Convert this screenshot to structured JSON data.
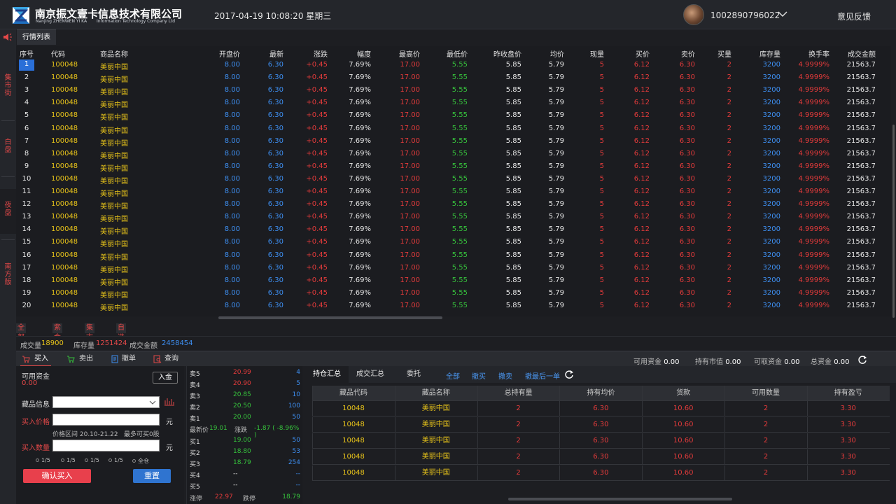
{
  "header": {
    "company_cn": "南京振文壹卡信息技术有限公司",
    "company_en_left": "Nanjing ZHENWEN YI KA",
    "company_en_right": "Information Technology Company Ltd",
    "datetime": "2017-04-19 10:08:20 星期三",
    "account": "1002890796022",
    "feedback": "意见反馈"
  },
  "sidebar": {
    "tabs": [
      "集市街",
      "白盘",
      "夜盘",
      "南方版"
    ],
    "active_index": 2
  },
  "market": {
    "tab_label": "行情列表",
    "columns": [
      "序号",
      "代码",
      "商品名称",
      "开盘价",
      "最新",
      "涨跌",
      "幅度",
      "最高价",
      "最低价",
      "昨收盘价",
      "均价",
      "现量",
      "买价",
      "卖价",
      "买量",
      "库存量",
      "换手率",
      "成交金额"
    ],
    "selected_row": 1,
    "rows": [
      [
        "1",
        "100048",
        "美丽中国",
        "8.00",
        "6.30",
        "+0.45",
        "7.69%",
        "17.00",
        "5.55",
        "5.85",
        "5.79",
        "5",
        "6.12",
        "6.30",
        "2",
        "3200",
        "4.9999%",
        "21563.7"
      ],
      [
        "2",
        "100048",
        "美丽中国",
        "8.00",
        "6.30",
        "+0.45",
        "7.69%",
        "17.00",
        "5.55",
        "5.85",
        "5.79",
        "5",
        "6.12",
        "6.30",
        "2",
        "3200",
        "4.9999%",
        "21563.7"
      ],
      [
        "3",
        "100048",
        "美丽中国",
        "8.00",
        "6.30",
        "+0.45",
        "7.69%",
        "17.00",
        "5.55",
        "5.85",
        "5.79",
        "5",
        "6.12",
        "6.30",
        "2",
        "3200",
        "4.9999%",
        "21563.7"
      ],
      [
        "4",
        "100048",
        "美丽中国",
        "8.00",
        "6.30",
        "+0.45",
        "7.69%",
        "17.00",
        "5.55",
        "5.85",
        "5.79",
        "5",
        "6.12",
        "6.30",
        "2",
        "3200",
        "4.9999%",
        "21563.7"
      ],
      [
        "5",
        "100048",
        "美丽中国",
        "8.00",
        "6.30",
        "+0.45",
        "7.69%",
        "17.00",
        "5.55",
        "5.85",
        "5.79",
        "5",
        "6.12",
        "6.30",
        "2",
        "3200",
        "4.9999%",
        "21563.7"
      ],
      [
        "6",
        "100048",
        "美丽中国",
        "8.00",
        "6.30",
        "+0.45",
        "7.69%",
        "17.00",
        "5.55",
        "5.85",
        "5.79",
        "5",
        "6.12",
        "6.30",
        "2",
        "3200",
        "4.9999%",
        "21563.7"
      ],
      [
        "7",
        "100048",
        "美丽中国",
        "8.00",
        "6.30",
        "+0.45",
        "7.69%",
        "17.00",
        "5.55",
        "5.85",
        "5.79",
        "5",
        "6.12",
        "6.30",
        "2",
        "3200",
        "4.9999%",
        "21563.7"
      ],
      [
        "8",
        "100048",
        "美丽中国",
        "8.00",
        "6.30",
        "+0.45",
        "7.69%",
        "17.00",
        "5.55",
        "5.85",
        "5.79",
        "5",
        "6.12",
        "6.30",
        "2",
        "3200",
        "4.9999%",
        "21563.7"
      ],
      [
        "9",
        "100048",
        "美丽中国",
        "8.00",
        "6.30",
        "+0.45",
        "7.69%",
        "17.00",
        "5.55",
        "5.85",
        "5.79",
        "5",
        "6.12",
        "6.30",
        "2",
        "3200",
        "4.9999%",
        "21563.7"
      ],
      [
        "10",
        "100048",
        "美丽中国",
        "8.00",
        "6.30",
        "+0.45",
        "7.69%",
        "17.00",
        "5.55",
        "5.85",
        "5.79",
        "5",
        "6.12",
        "6.30",
        "2",
        "3200",
        "4.9999%",
        "21563.7"
      ],
      [
        "11",
        "100048",
        "美丽中国",
        "8.00",
        "6.30",
        "+0.45",
        "7.69%",
        "17.00",
        "5.55",
        "5.85",
        "5.79",
        "5",
        "6.12",
        "6.30",
        "2",
        "3200",
        "4.9999%",
        "21563.7"
      ],
      [
        "12",
        "100048",
        "美丽中国",
        "8.00",
        "6.30",
        "+0.45",
        "7.69%",
        "17.00",
        "5.55",
        "5.85",
        "5.79",
        "5",
        "6.12",
        "6.30",
        "2",
        "3200",
        "4.9999%",
        "21563.7"
      ],
      [
        "13",
        "100048",
        "美丽中国",
        "8.00",
        "6.30",
        "+0.45",
        "7.69%",
        "17.00",
        "5.55",
        "5.85",
        "5.79",
        "5",
        "6.12",
        "6.30",
        "2",
        "3200",
        "4.9999%",
        "21563.7"
      ],
      [
        "14",
        "100048",
        "美丽中国",
        "8.00",
        "6.30",
        "+0.45",
        "7.69%",
        "17.00",
        "5.55",
        "5.85",
        "5.79",
        "5",
        "6.12",
        "6.30",
        "2",
        "3200",
        "4.9999%",
        "21563.7"
      ],
      [
        "15",
        "100048",
        "美丽中国",
        "8.00",
        "6.30",
        "+0.45",
        "7.69%",
        "17.00",
        "5.55",
        "5.85",
        "5.79",
        "5",
        "6.12",
        "6.30",
        "2",
        "3200",
        "4.9999%",
        "21563.7"
      ],
      [
        "16",
        "100048",
        "美丽中国",
        "8.00",
        "6.30",
        "+0.45",
        "7.69%",
        "17.00",
        "5.55",
        "5.85",
        "5.79",
        "5",
        "6.12",
        "6.30",
        "2",
        "3200",
        "4.9999%",
        "21563.7"
      ],
      [
        "17",
        "100048",
        "美丽中国",
        "8.00",
        "6.30",
        "+0.45",
        "7.69%",
        "17.00",
        "5.55",
        "5.85",
        "5.79",
        "5",
        "6.12",
        "6.30",
        "2",
        "3200",
        "4.9999%",
        "21563.7"
      ],
      [
        "18",
        "100048",
        "美丽中国",
        "8.00",
        "6.30",
        "+0.45",
        "7.69%",
        "17.00",
        "5.55",
        "5.85",
        "5.79",
        "5",
        "6.12",
        "6.30",
        "2",
        "3200",
        "4.9999%",
        "21563.7"
      ],
      [
        "19",
        "100048",
        "美丽中国",
        "8.00",
        "6.30",
        "+0.45",
        "7.69%",
        "17.00",
        "5.55",
        "5.85",
        "5.79",
        "5",
        "6.12",
        "6.30",
        "2",
        "3200",
        "4.9999%",
        "21563.7"
      ],
      [
        "20",
        "100048",
        "美丽中国",
        "8.00",
        "6.30",
        "+0.45",
        "7.69%",
        "17.00",
        "5.55",
        "5.85",
        "5.79",
        "5",
        "6.12",
        "6.30",
        "2",
        "3200",
        "4.9999%",
        "21563.7"
      ]
    ]
  },
  "categories": [
    "全部商品",
    "紫金石",
    "集市街",
    "自选商品"
  ],
  "stats": {
    "volume_label": "成交量",
    "volume": "18900",
    "stock_label": "库存量",
    "stock": "1251424",
    "amount_label": "成交金额",
    "amount": "2458454"
  },
  "trade_tabs": [
    "买入",
    "卖出",
    "撤单",
    "查询"
  ],
  "funds": {
    "available_label": "可用资金",
    "available": "0.00",
    "market_value_label": "持有市值",
    "market_value": "0.00",
    "withdrawable_label": "可取资金",
    "withdrawable": "0.00",
    "total_label": "总资金",
    "total": "0.00"
  },
  "buy_form": {
    "available_label": "可用资金",
    "available_value": "0.00",
    "deposit_button": "入金",
    "item_label": "藏品信息",
    "price_label": "买入价格",
    "price_unit": "元",
    "price_range": "价格区间 20.10-21.22",
    "max_buy": "最多可买0股",
    "qty_label": "买入数量",
    "qty_unit": "元",
    "ratios": [
      "1/5",
      "1/5",
      "1/5",
      "1/5",
      "全仓"
    ],
    "confirm_button": "确认买入",
    "reset_button": "重置"
  },
  "order_book": {
    "asks": [
      {
        "label": "卖5",
        "price": "20.99",
        "qty": "4"
      },
      {
        "label": "卖4",
        "price": "20.90",
        "qty": "5"
      },
      {
        "label": "卖3",
        "price": "20.85",
        "qty": "10"
      },
      {
        "label": "卖2",
        "price": "20.50",
        "qty": "100"
      },
      {
        "label": "卖1",
        "price": "20.00",
        "qty": "50"
      }
    ],
    "last_label": "最新价",
    "last_price": "19.01",
    "change_label": "涨跌",
    "change_value": "-1.87 ( -8.96% )",
    "bids": [
      {
        "label": "买1",
        "price": "19.00",
        "qty": "50"
      },
      {
        "label": "买2",
        "price": "18.80",
        "qty": "53"
      },
      {
        "label": "买3",
        "price": "18.79",
        "qty": "254"
      },
      {
        "label": "买4",
        "price": "--",
        "qty": "--"
      },
      {
        "label": "买5",
        "price": "--",
        "qty": "--"
      }
    ],
    "limit_up_label": "涨停",
    "limit_up": "22.97",
    "limit_down_label": "跌停",
    "limit_down": "18.79"
  },
  "positions": {
    "tabs": [
      "持仓汇总",
      "成交汇总",
      "委托"
    ],
    "links": [
      "全部",
      "撤买",
      "撤卖",
      "撤最后一单"
    ],
    "columns": [
      "藏品代码",
      "藏品名称",
      "总持有量",
      "持有均价",
      "货款",
      "可用数量",
      "持有盈亏"
    ],
    "rows": [
      [
        "10048",
        "美丽中国",
        "2",
        "6.30",
        "10.60",
        "2",
        "3.30"
      ],
      [
        "10048",
        "美丽中国",
        "2",
        "6.30",
        "10.60",
        "2",
        "3.30"
      ],
      [
        "10048",
        "美丽中国",
        "2",
        "6.30",
        "10.60",
        "2",
        "3.30"
      ],
      [
        "10048",
        "美丽中国",
        "2",
        "6.30",
        "10.60",
        "2",
        "3.30"
      ],
      [
        "10048",
        "美丽中国",
        "2",
        "6.30",
        "10.60",
        "2",
        "3.30"
      ]
    ]
  },
  "colors": {
    "up_red": "#e43b3b",
    "down_green": "#36c23c",
    "price_blue": "#3d8ef0",
    "code_yellow": "#e6c21a",
    "confirm_button": "#e8404c",
    "reset_button": "#2f74d0"
  }
}
